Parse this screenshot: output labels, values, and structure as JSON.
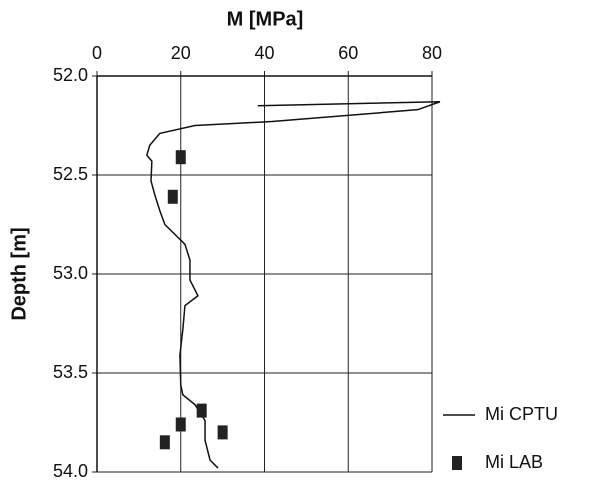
{
  "chart_data": {
    "type": "line-scatter",
    "xlabel": "M [MPa]",
    "ylabel": "Depth [m]",
    "xlim": [
      0,
      80
    ],
    "xticks": [
      0,
      20,
      40,
      60,
      80
    ],
    "ylim": [
      52,
      54
    ],
    "y_inverted": true,
    "yticks": [
      {
        "value": 52,
        "label": "52.0"
      },
      {
        "value": 52.5,
        "label": "52.5"
      },
      {
        "value": 53,
        "label": "53.0"
      },
      {
        "value": 53.5,
        "label": "53.5"
      },
      {
        "value": 54,
        "label": "54.0"
      }
    ],
    "grid": true,
    "legend": "lower right",
    "series": [
      {
        "name": "Mi CPTU",
        "type": "line",
        "color": "#111111",
        "x": [
          38.4,
          81.9,
          76.6,
          41.8,
          23.4,
          15.0,
          12.6,
          11.9,
          13.1,
          12.9,
          13.8,
          15.0,
          16.2,
          18.6,
          21.0,
          22.2,
          22.2,
          24.1,
          21.0,
          20.5,
          19.8,
          20.0,
          20.5,
          23.4,
          25.8,
          25.8,
          27.0,
          28.9
        ],
        "values": [
          52.15,
          52.13,
          52.17,
          52.23,
          52.25,
          52.29,
          52.35,
          52.4,
          52.43,
          52.53,
          52.6,
          52.68,
          52.75,
          52.8,
          52.85,
          52.93,
          53.03,
          53.11,
          53.16,
          53.28,
          53.41,
          53.56,
          53.61,
          53.66,
          53.74,
          53.84,
          53.94,
          53.98
        ]
      },
      {
        "name": "Mi LAB",
        "type": "scatter",
        "color": "#222222",
        "x": [
          20.0,
          18.1,
          25.0,
          20.0,
          30.0,
          16.2
        ],
        "values": [
          52.41,
          52.61,
          53.69,
          53.76,
          53.8,
          53.85
        ]
      }
    ]
  }
}
